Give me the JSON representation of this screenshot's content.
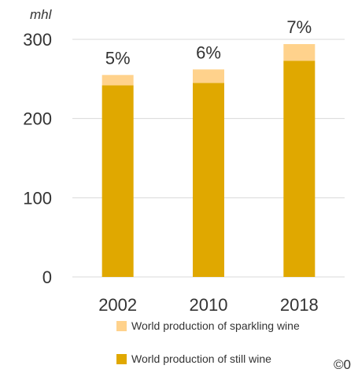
{
  "chart_data": {
    "type": "bar",
    "stacked": true,
    "unit": "mhl",
    "categories": [
      "2002",
      "2010",
      "2018"
    ],
    "series": [
      {
        "name": "World production of still wine",
        "values": [
          242,
          245,
          273
        ],
        "color": "#E0A800"
      },
      {
        "name": "World production of sparkling wine",
        "values": [
          13,
          17,
          21
        ],
        "color": "#FFD28C"
      }
    ],
    "data_labels": [
      "5%",
      "6%",
      "7%"
    ],
    "ylim": [
      0,
      300
    ],
    "yticks": [
      0,
      100,
      200,
      300
    ],
    "grid": true,
    "legend_position": "bottom"
  },
  "copyright": "©0"
}
